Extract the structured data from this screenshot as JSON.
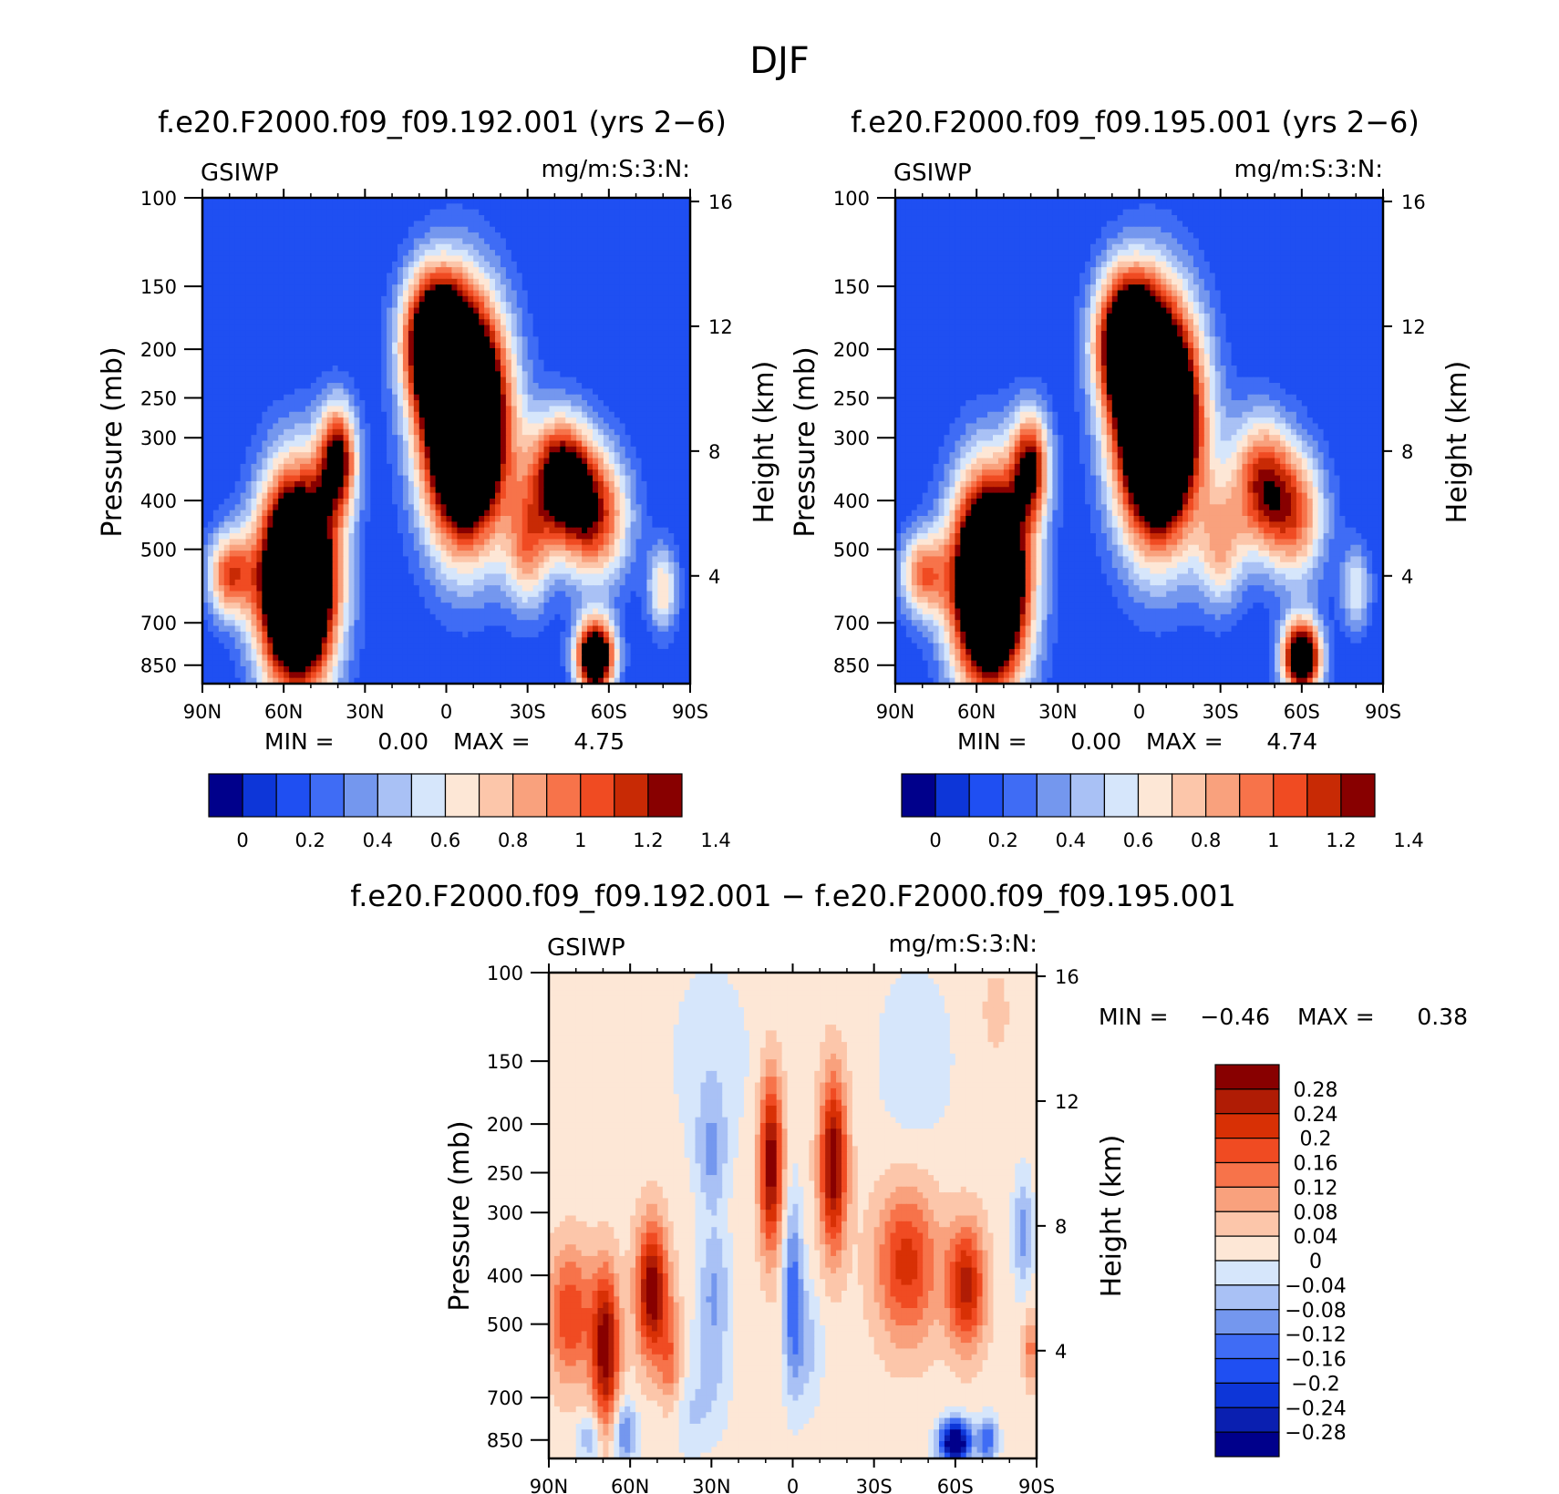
{
  "figure_title": "DJF",
  "colors": {
    "diverging_16": [
      "#00008b",
      "#0a1fb0",
      "#0d36d8",
      "#1f4ff2",
      "#3f6cf5",
      "#7497ee",
      "#a9c1f5",
      "#d6e6fb",
      "#fde7d6",
      "#fcc6aa",
      "#f9a17d",
      "#f7734a",
      "#f04b22",
      "#d83005",
      "#b01c05",
      "#880000"
    ],
    "diverging_14": [
      "#00008b",
      "#0d36d8",
      "#1f4ff2",
      "#3f6cf5",
      "#7497ee",
      "#a9c1f5",
      "#d6e6fb",
      "#fde7d6",
      "#fcc6aa",
      "#f9a17d",
      "#f7734a",
      "#f04b22",
      "#c82a05",
      "#880000"
    ]
  },
  "chart_data": [
    {
      "type": "heatmap",
      "title": "f.e20.F2000.f09_f09.192.001 (yrs 2−6)",
      "left_label": "GSIWP",
      "right_label": "mg/m:S:3:N:",
      "xlabel": "",
      "ylabel": "Pressure (mb)",
      "ylabel_right": "Height (km)",
      "x_ticks": [
        "90N",
        "60N",
        "30N",
        "0",
        "30S",
        "60S",
        "90S"
      ],
      "x_range": [
        90,
        -90
      ],
      "y_ticks": [
        100,
        150,
        200,
        250,
        300,
        400,
        500,
        700,
        850
      ],
      "y_range": [
        100,
        925
      ],
      "y_scale": "log",
      "y_right_ticks": [
        16,
        12,
        8,
        4
      ],
      "stats": {
        "min_label": "MIN =",
        "min": "0.00",
        "max_label": "MAX =",
        "max": "4.75"
      },
      "colorbar": {
        "orientation": "horizontal",
        "tick_labels": [
          "0",
          "0.2",
          "0.4",
          "0.6",
          "0.8",
          "1",
          "1.2",
          "1.4"
        ],
        "levels": [
          -0.1,
          0,
          0.1,
          0.2,
          0.3,
          0.4,
          0.5,
          0.6,
          0.7,
          0.8,
          0.9,
          1,
          1.1,
          1.2,
          1.3,
          1.4
        ]
      },
      "blobs": [
        {
          "lat": 55,
          "p": 580,
          "amp": 2.6,
          "sx": 10,
          "sy": 0.34
        },
        {
          "lat": 40,
          "p": 330,
          "amp": 1.2,
          "sx": 5,
          "sy": 0.18
        },
        {
          "lat": 80,
          "p": 560,
          "amp": 0.9,
          "sx": 6,
          "sy": 0.14
        },
        {
          "lat": -7,
          "p": 280,
          "amp": 2.6,
          "sx": 11,
          "sy": 0.38
        },
        {
          "lat": 5,
          "p": 190,
          "amp": 1.4,
          "sx": 8,
          "sy": 0.22
        },
        {
          "lat": -42,
          "p": 360,
          "amp": 1.3,
          "sx": 8,
          "sy": 0.2
        },
        {
          "lat": -55,
          "p": 430,
          "amp": 1.0,
          "sx": 9,
          "sy": 0.22
        },
        {
          "lat": -55,
          "p": 820,
          "amp": 1.8,
          "sx": 5,
          "sy": 0.12
        },
        {
          "lat": -30,
          "p": 500,
          "amp": 0.7,
          "sx": 6,
          "sy": 0.2
        },
        {
          "lat": -80,
          "p": 600,
          "amp": 0.6,
          "sx": 4,
          "sy": 0.14
        }
      ]
    },
    {
      "type": "heatmap",
      "title": "f.e20.F2000.f09_f09.195.001 (yrs 2−6)",
      "left_label": "GSIWP",
      "right_label": "mg/m:S:3:N:",
      "xlabel": "",
      "ylabel": "Pressure (mb)",
      "ylabel_right": "Height (km)",
      "x_ticks": [
        "90N",
        "60N",
        "30N",
        "0",
        "30S",
        "60S",
        "90S"
      ],
      "x_range": [
        90,
        -90
      ],
      "y_ticks": [
        100,
        150,
        200,
        250,
        300,
        400,
        500,
        700,
        850
      ],
      "y_range": [
        100,
        925
      ],
      "y_scale": "log",
      "y_right_ticks": [
        16,
        12,
        8,
        4
      ],
      "stats": {
        "min_label": "MIN =",
        "min": "0.00",
        "max_label": "MAX =",
        "max": "4.74"
      },
      "colorbar": {
        "orientation": "horizontal",
        "tick_labels": [
          "0",
          "0.2",
          "0.4",
          "0.6",
          "0.8",
          "1",
          "1.2",
          "1.4"
        ],
        "levels": [
          -0.1,
          0,
          0.1,
          0.2,
          0.3,
          0.4,
          0.5,
          0.6,
          0.7,
          0.8,
          0.9,
          1,
          1.1,
          1.2,
          1.3,
          1.4
        ]
      },
      "blobs": [
        {
          "lat": 55,
          "p": 580,
          "amp": 2.5,
          "sx": 10,
          "sy": 0.34
        },
        {
          "lat": 40,
          "p": 340,
          "amp": 1.1,
          "sx": 5,
          "sy": 0.18
        },
        {
          "lat": 80,
          "p": 560,
          "amp": 0.8,
          "sx": 6,
          "sy": 0.14
        },
        {
          "lat": -7,
          "p": 280,
          "amp": 2.6,
          "sx": 11,
          "sy": 0.38
        },
        {
          "lat": 5,
          "p": 190,
          "amp": 1.4,
          "sx": 8,
          "sy": 0.22
        },
        {
          "lat": -45,
          "p": 370,
          "amp": 1.0,
          "sx": 8,
          "sy": 0.22
        },
        {
          "lat": -58,
          "p": 430,
          "amp": 0.8,
          "sx": 8,
          "sy": 0.22
        },
        {
          "lat": -60,
          "p": 820,
          "amp": 1.7,
          "sx": 5,
          "sy": 0.12
        },
        {
          "lat": -30,
          "p": 500,
          "amp": 0.6,
          "sx": 6,
          "sy": 0.2
        },
        {
          "lat": -80,
          "p": 600,
          "amp": 0.5,
          "sx": 4,
          "sy": 0.14
        }
      ]
    },
    {
      "type": "heatmap",
      "title": "f.e20.F2000.f09_f09.192.001 − f.e20.F2000.f09_f09.195.001",
      "left_label": "GSIWP",
      "right_label": "mg/m:S:3:N:",
      "xlabel": "",
      "ylabel": "Pressure (mb)",
      "ylabel_right": "Height (km)",
      "x_ticks": [
        "90N",
        "60N",
        "30N",
        "0",
        "30S",
        "60S",
        "90S"
      ],
      "x_range": [
        90,
        -90
      ],
      "y_ticks": [
        100,
        150,
        200,
        250,
        300,
        400,
        500,
        700,
        850
      ],
      "y_range": [
        100,
        925
      ],
      "y_scale": "log",
      "y_right_ticks": [
        16,
        12,
        8,
        4
      ],
      "stats": {
        "min_label": "MIN =",
        "min": "−0.46",
        "max_label": "MAX =",
        "max": "0.38"
      },
      "colorbar": {
        "orientation": "vertical",
        "tick_labels": [
          "0.28",
          "0.24",
          "0.2",
          "0.16",
          "0.12",
          "0.08",
          "0.04",
          "0",
          "−0.04",
          "−0.08",
          "−0.12",
          "−0.16",
          "−0.2",
          "−0.24",
          "−0.28"
        ],
        "levels": [
          -0.28,
          -0.24,
          -0.2,
          -0.16,
          -0.12,
          -0.08,
          -0.04,
          0,
          0.04,
          0.08,
          0.12,
          0.16,
          0.2,
          0.24,
          0.28
        ]
      },
      "blobs": [
        {
          "lat": 0,
          "p": 300,
          "amp": 0.02,
          "sx": 200,
          "sy": 3
        },
        {
          "lat": 82,
          "p": 480,
          "amp": 0.18,
          "sx": 6,
          "sy": 0.22
        },
        {
          "lat": 69,
          "p": 560,
          "amp": 0.3,
          "sx": 3.5,
          "sy": 0.25
        },
        {
          "lat": 52,
          "p": 430,
          "amp": 0.3,
          "sx": 4,
          "sy": 0.22
        },
        {
          "lat": 45,
          "p": 600,
          "amp": 0.12,
          "sx": 3,
          "sy": 0.2
        },
        {
          "lat": 8,
          "p": 240,
          "amp": 0.3,
          "sx": 3,
          "sy": 0.28
        },
        {
          "lat": -15,
          "p": 240,
          "amp": 0.3,
          "sx": 3.5,
          "sy": 0.28
        },
        {
          "lat": -42,
          "p": 380,
          "amp": 0.2,
          "sx": 8,
          "sy": 0.25
        },
        {
          "lat": -64,
          "p": 420,
          "amp": 0.24,
          "sx": 5,
          "sy": 0.2
        },
        {
          "lat": -88,
          "p": 560,
          "amp": 0.12,
          "sx": 2,
          "sy": 0.12
        },
        {
          "lat": 30,
          "p": 230,
          "amp": -0.1,
          "sx": 4,
          "sy": 0.18
        },
        {
          "lat": 29,
          "p": 420,
          "amp": -0.1,
          "sx": 4,
          "sy": 0.2
        },
        {
          "lat": 30,
          "p": 620,
          "amp": -0.06,
          "sx": 5,
          "sy": 0.2
        },
        {
          "lat": 0,
          "p": 430,
          "amp": -0.16,
          "sx": 2.5,
          "sy": 0.3
        },
        {
          "lat": -5,
          "p": 550,
          "amp": -0.08,
          "sx": 4,
          "sy": 0.2
        },
        {
          "lat": -60,
          "p": 860,
          "amp": -0.4,
          "sx": 4,
          "sy": 0.07
        },
        {
          "lat": -72,
          "p": 850,
          "amp": -0.18,
          "sx": 2.5,
          "sy": 0.07
        },
        {
          "lat": -85,
          "p": 330,
          "amp": -0.12,
          "sx": 2.5,
          "sy": 0.18
        },
        {
          "lat": 62,
          "p": 820,
          "amp": -0.15,
          "sx": 3,
          "sy": 0.1
        },
        {
          "lat": 75,
          "p": 840,
          "amp": -0.1,
          "sx": 3,
          "sy": 0.08
        },
        {
          "lat": 40,
          "p": 760,
          "amp": -0.06,
          "sx": 6,
          "sy": 0.12
        },
        {
          "lat": 30,
          "p": 150,
          "amp": -0.05,
          "sx": 10,
          "sy": 0.3
        },
        {
          "lat": -45,
          "p": 150,
          "amp": -0.05,
          "sx": 10,
          "sy": 0.3
        },
        {
          "lat": -75,
          "p": 120,
          "amp": 0.06,
          "sx": 3,
          "sy": 0.12
        }
      ]
    }
  ]
}
